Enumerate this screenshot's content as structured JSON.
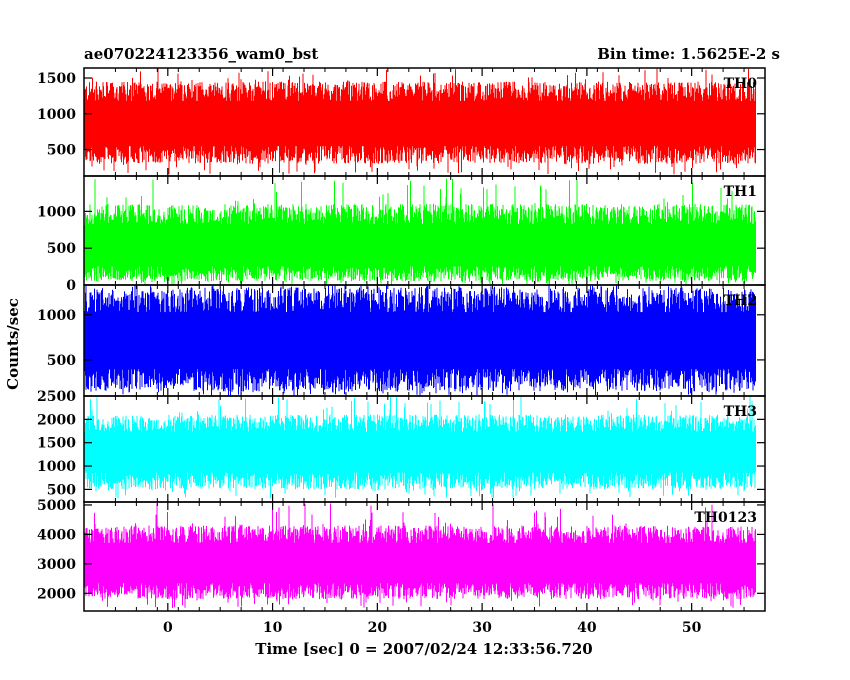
{
  "chart_data": {
    "type": "line",
    "title_left": "ae070224123356_wam0_bst",
    "title_right": "Bin time: 1.5625E-2 s",
    "xlabel": "Time [sec] 0 = 2007/02/24 12:33:56.720",
    "ylabel": "Counts/sec",
    "xlim": [
      -8,
      57
    ],
    "x_data_range": [
      -7.9,
      56.1
    ],
    "x_ticks": [
      0,
      10,
      20,
      30,
      40,
      50
    ],
    "x_tick_labels": [
      "0",
      "10",
      "20",
      "30",
      "40",
      "50"
    ],
    "grid": false,
    "panels": [
      {
        "label": "TH0",
        "color": "#ff0000",
        "ylim": [
          130,
          1640
        ],
        "y_ticks": [
          500,
          1000,
          1500
        ],
        "y_tick_labels": [
          "500",
          "1000",
          "1500"
        ],
        "mean": 850,
        "typical_min": 300,
        "typical_max": 1450,
        "extreme_min": 150,
        "extreme_max": 1640
      },
      {
        "label": "TH1",
        "color": "#00ff00",
        "ylim": [
          0,
          1480
        ],
        "y_ticks": [
          0,
          500,
          1000
        ],
        "y_tick_labels": [
          "0",
          "500",
          "1000"
        ],
        "mean": 500,
        "typical_min": 50,
        "typical_max": 1100,
        "extreme_min": 0,
        "extreme_max": 1450
      },
      {
        "label": "TH2",
        "color": "#0000ff",
        "ylim": [
          100,
          1330
        ],
        "y_ticks": [
          500,
          1000
        ],
        "y_tick_labels": [
          "500",
          "1000"
        ],
        "mean": 700,
        "typical_min": 150,
        "typical_max": 1300,
        "extreme_min": 100,
        "extreme_max": 1330
      },
      {
        "label": "TH3",
        "color": "#00ffff",
        "ylim": [
          230,
          2500
        ],
        "y_ticks": [
          500,
          1000,
          1500,
          2000,
          2500
        ],
        "y_tick_labels": [
          "500",
          "1000",
          "1500",
          "2000",
          "2500"
        ],
        "mean": 1300,
        "typical_min": 500,
        "typical_max": 2100,
        "extreme_min": 300,
        "extreme_max": 2500
      },
      {
        "label": "TH0123",
        "color": "#ff00ff",
        "ylim": [
          1400,
          5100
        ],
        "y_ticks": [
          2000,
          3000,
          4000,
          5000
        ],
        "y_tick_labels": [
          "2000",
          "3000",
          "4000",
          "5000"
        ],
        "mean": 3000,
        "typical_min": 1800,
        "typical_max": 4300,
        "extreme_min": 1500,
        "extreme_max": 5050
      }
    ]
  }
}
